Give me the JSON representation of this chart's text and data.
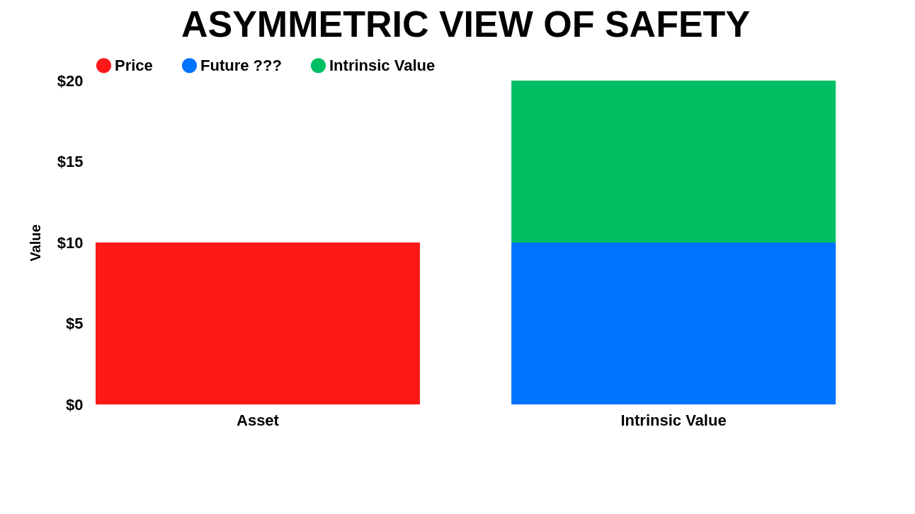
{
  "chart_data": {
    "type": "bar",
    "title": "ASYMMETRIC VIEW OF SAFETY",
    "ylabel": "Value",
    "categories": [
      "Asset",
      "Intrinsic Value"
    ],
    "stacked": true,
    "legend": "top",
    "series": [
      {
        "name": "Price",
        "color": "#fe1818",
        "values": [
          10,
          null
        ]
      },
      {
        "name": "Future ???",
        "color": "#0073ff",
        "values": [
          null,
          10
        ]
      },
      {
        "name": "Intrinsic Value",
        "color": "#00bf63",
        "values": [
          null,
          10
        ]
      }
    ],
    "ylim": [
      0,
      20
    ],
    "yticks": [
      {
        "value": 0,
        "label": "$0"
      },
      {
        "value": 5,
        "label": "$5"
      },
      {
        "value": 10,
        "label": "$10"
      },
      {
        "value": 15,
        "label": "$15"
      },
      {
        "value": 20,
        "label": "$20"
      }
    ]
  }
}
